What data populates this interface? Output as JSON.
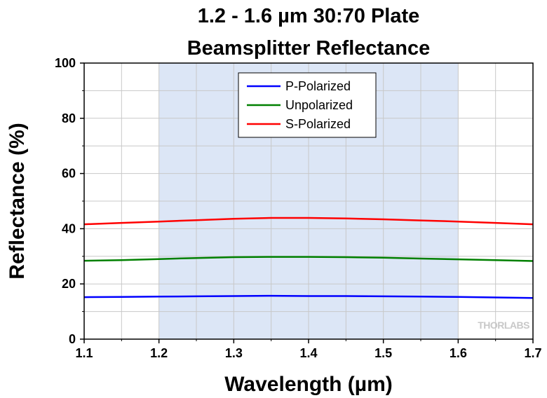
{
  "chart_data": {
    "type": "line",
    "title_line1": "1.2 - 1.6 µm 30:70 Plate",
    "title_line2": "Beamsplitter Reflectance",
    "xlabel": "Wavelength (µm)",
    "ylabel": "Reflectance (%)",
    "xlim": [
      1.1,
      1.7
    ],
    "ylim": [
      0,
      100
    ],
    "x_ticks": [
      "1.1",
      "1.2",
      "1.3",
      "1.4",
      "1.5",
      "1.6",
      "1.7"
    ],
    "y_ticks": [
      "0",
      "20",
      "40",
      "60",
      "80",
      "100"
    ],
    "grid": true,
    "shaded_band": [
      1.2,
      1.6
    ],
    "shaded_color": "#dce6f6",
    "legend_position": "top-center",
    "watermark": "THORLABS",
    "x": [
      1.1,
      1.15,
      1.2,
      1.25,
      1.3,
      1.35,
      1.4,
      1.45,
      1.5,
      1.55,
      1.6,
      1.65,
      1.7
    ],
    "series": [
      {
        "name": "P-Polarized",
        "color": "#0000ff",
        "values": [
          15.2,
          15.3,
          15.4,
          15.5,
          15.6,
          15.7,
          15.6,
          15.6,
          15.5,
          15.4,
          15.3,
          15.1,
          14.9
        ]
      },
      {
        "name": "Unpolarized",
        "color": "#008000",
        "values": [
          28.4,
          28.6,
          29.0,
          29.4,
          29.7,
          29.8,
          29.8,
          29.7,
          29.5,
          29.2,
          28.9,
          28.6,
          28.3
        ]
      },
      {
        "name": "S-Polarized",
        "color": "#ff0000",
        "values": [
          41.6,
          42.1,
          42.6,
          43.1,
          43.6,
          43.9,
          43.9,
          43.7,
          43.4,
          43.0,
          42.6,
          42.1,
          41.6
        ]
      }
    ]
  }
}
